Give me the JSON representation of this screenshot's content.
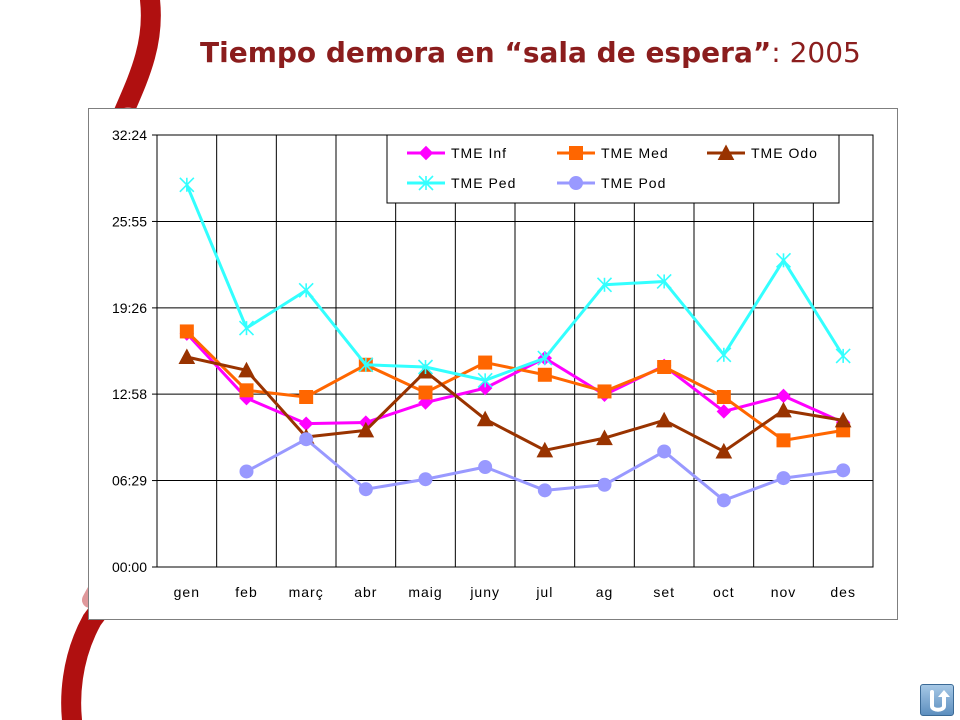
{
  "title": {
    "main": "Tiempo demora en “sala de espera”",
    "suffix": ": 2005"
  },
  "colors": {
    "title": "#8b1d1d",
    "ribbon_dark": "#b01010",
    "ribbon_light": "#d4767a"
  },
  "nav": {
    "icon": "return-arrow-icon"
  },
  "chart_data": {
    "type": "line",
    "title": "",
    "xlabel": "",
    "ylabel": "",
    "categories": [
      "gen",
      "feb",
      "març",
      "abr",
      "maig",
      "juny",
      "jul",
      "ag",
      "set",
      "oct",
      "nov",
      "des"
    ],
    "y_unit": "minutes",
    "ylim": [
      0,
      1944
    ],
    "yticks": [
      {
        "label": "00:00",
        "value": 0
      },
      {
        "label": "06:29",
        "value": 389
      },
      {
        "label": "12:58",
        "value": 778
      },
      {
        "label": "19:26",
        "value": 1166
      },
      {
        "label": "25:55",
        "value": 1555
      },
      {
        "label": "32:24",
        "value": 1944
      }
    ],
    "grid": true,
    "legend": "top-right",
    "series": [
      {
        "name": "TME Inf",
        "color": "#ff00ff",
        "marker": "diamond",
        "values": [
          1050,
          760,
          645,
          650,
          740,
          805,
          940,
          775,
          905,
          700,
          770,
          650
        ]
      },
      {
        "name": "TME Med",
        "color": "#ff6600",
        "marker": "square",
        "values": [
          1060,
          795,
          765,
          910,
          785,
          920,
          865,
          790,
          900,
          765,
          570,
          615
        ]
      },
      {
        "name": "TME Odo",
        "color": "#993300",
        "marker": "triangle",
        "values": [
          945,
          885,
          585,
          615,
          880,
          665,
          525,
          580,
          660,
          520,
          705,
          660
        ]
      },
      {
        "name": "TME Ped",
        "color": "#33ffff",
        "marker": "star",
        "values": [
          1720,
          1075,
          1245,
          910,
          900,
          840,
          940,
          1270,
          1285,
          955,
          1380,
          950
        ]
      },
      {
        "name": "TME Pod",
        "color": "#9999ff",
        "marker": "circle",
        "values": [
          null,
          430,
          575,
          350,
          395,
          450,
          345,
          370,
          520,
          300,
          400,
          435
        ]
      }
    ]
  }
}
